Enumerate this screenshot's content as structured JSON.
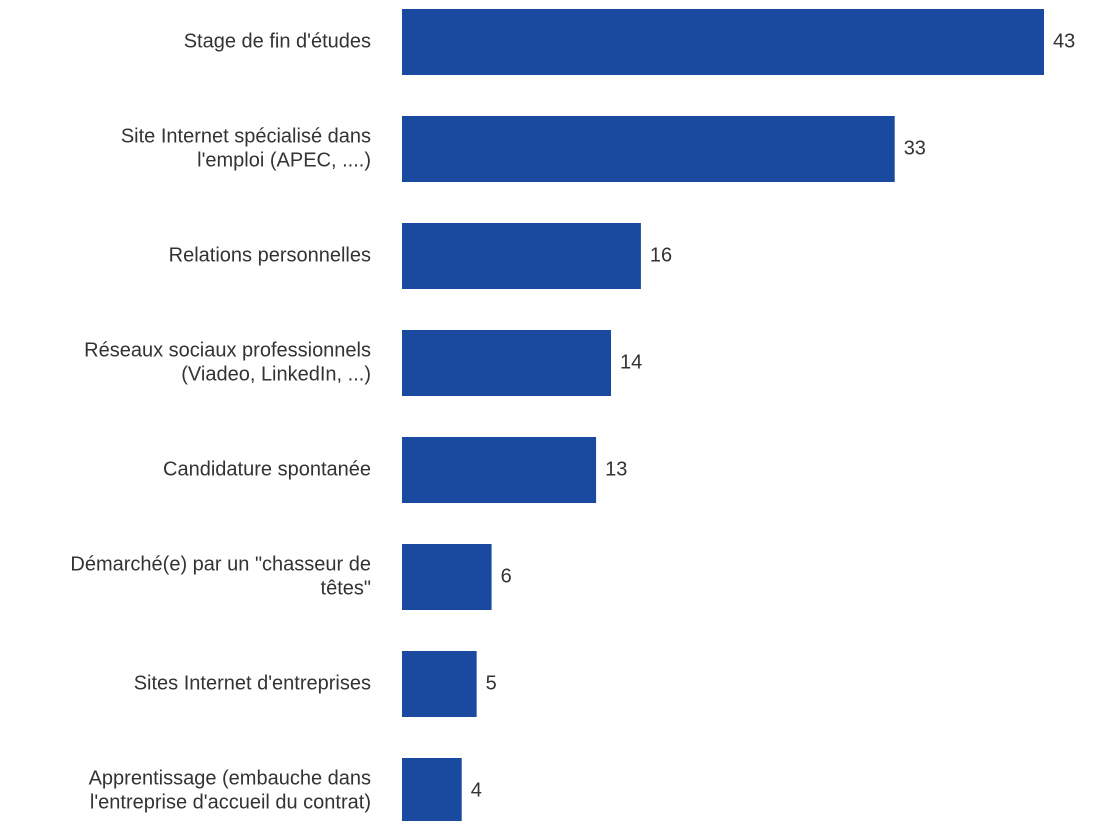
{
  "chart_data": {
    "type": "bar",
    "orientation": "horizontal",
    "categories": [
      [
        "Stage de fin d'études"
      ],
      [
        "Site Internet spécialisé dans",
        "l'emploi (APEC, ....)"
      ],
      [
        "Relations personnelles"
      ],
      [
        "Réseaux sociaux professionnels",
        "(Viadeo, LinkedIn, ...)"
      ],
      [
        "Candidature spontanée"
      ],
      [
        "Démarché(e) par un \"chasseur de",
        "têtes\""
      ],
      [
        "Sites Internet d'entreprises"
      ],
      [
        "Apprentissage (embauche dans",
        "l'entreprise d'accueil du contrat)"
      ]
    ],
    "values": [
      43,
      33,
      16,
      14,
      13,
      6,
      5,
      4
    ],
    "value_labels": [
      "43",
      "33",
      "16",
      "14",
      "13",
      "6",
      "5",
      "4"
    ],
    "xlim": [
      0,
      43
    ],
    "grid": false,
    "bar_color": "#1a49a0",
    "text_color": "#333333"
  }
}
